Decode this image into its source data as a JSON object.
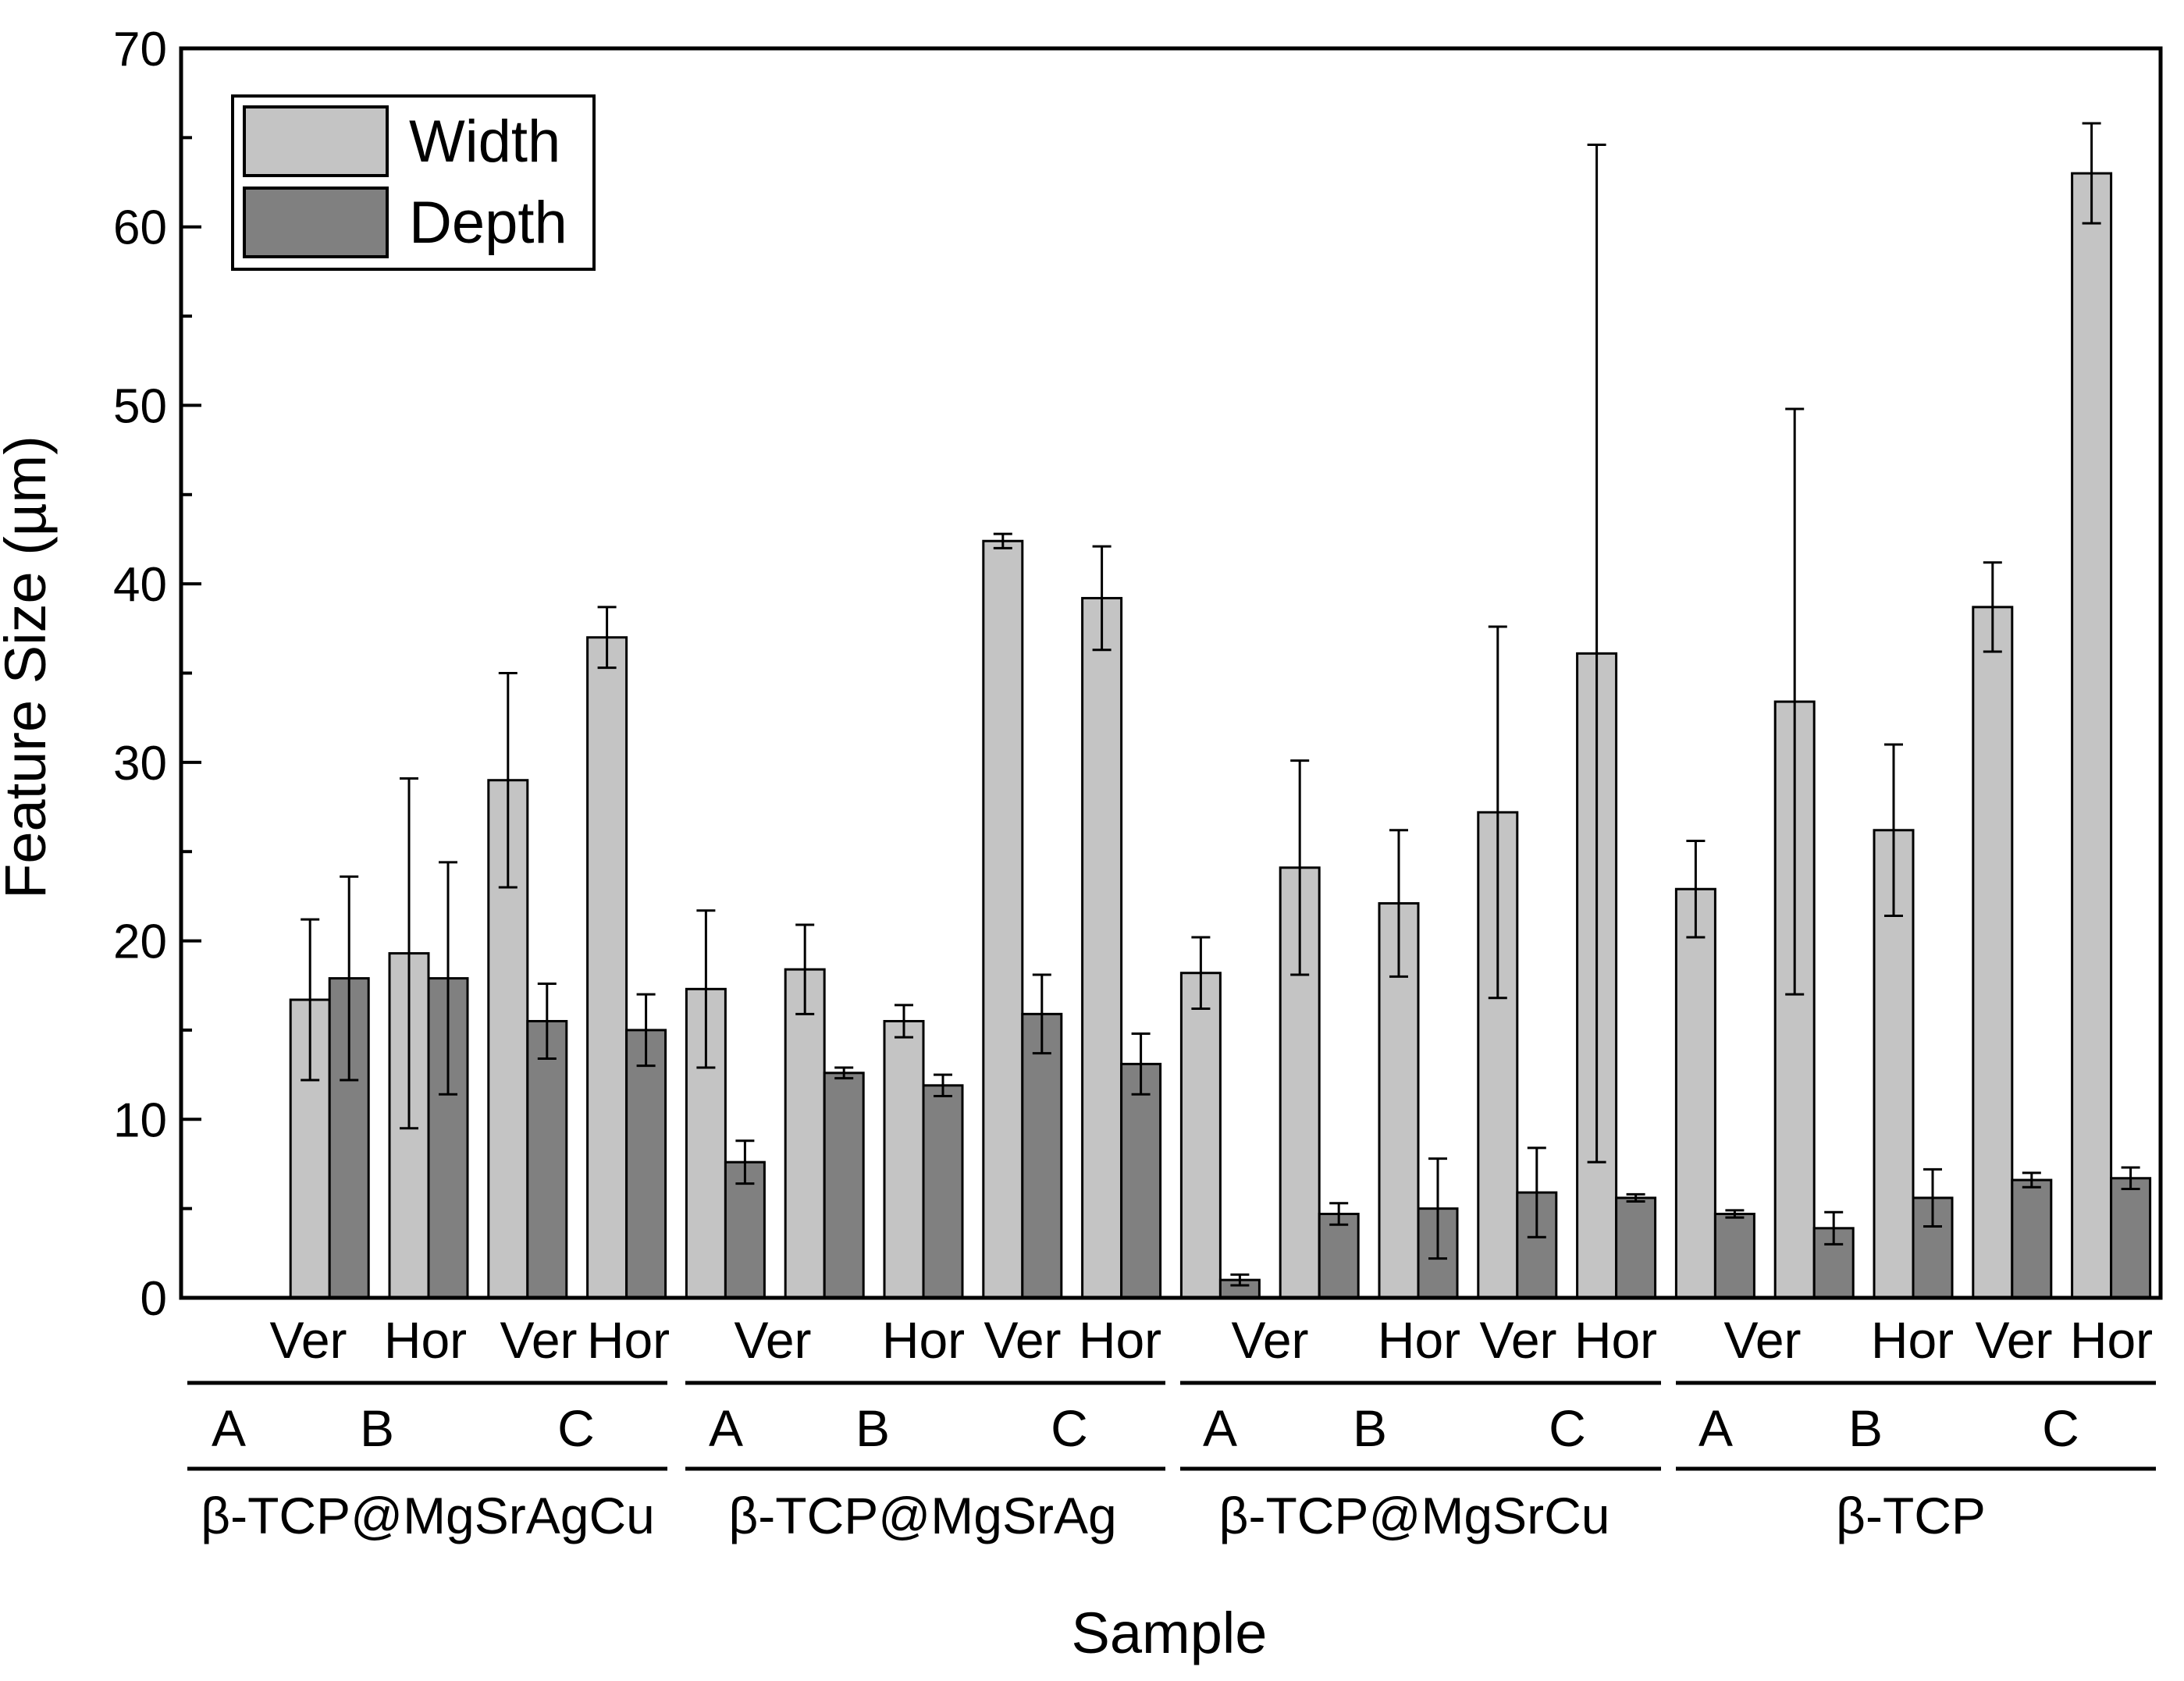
{
  "chart_data": {
    "type": "bar",
    "title": "",
    "xlabel": "Sample",
    "ylabel": "Feature Size (µm)",
    "ylim": [
      0,
      70
    ],
    "yticks": [
      0,
      10,
      20,
      30,
      40,
      50,
      60,
      70
    ],
    "grid": false,
    "legend_position": "top-left",
    "categories": [
      "β-TCP@MgSrAgCu A Ver",
      "β-TCP@MgSrAgCu B Ver",
      "β-TCP@MgSrAgCu B Hor",
      "β-TCP@MgSrAgCu C Ver",
      "β-TCP@MgSrAgCu C Hor",
      "β-TCP@MgSrAg A Ver",
      "β-TCP@MgSrAg B Ver",
      "β-TCP@MgSrAg B Hor",
      "β-TCP@MgSrAg C Ver",
      "β-TCP@MgSrAg C Hor",
      "β-TCP@MgSrCu A Ver",
      "β-TCP@MgSrCu B Ver",
      "β-TCP@MgSrCu B Hor",
      "β-TCP@MgSrCu C Ver",
      "β-TCP@MgSrCu C Hor",
      "β-TCP A Ver",
      "β-TCP B Ver",
      "β-TCP B Hor",
      "β-TCP C Ver",
      "β-TCP C Hor"
    ],
    "series": [
      {
        "name": "Width",
        "color": "#c4c4c4",
        "values": [
          null,
          16.7,
          19.3,
          29.0,
          37.0,
          17.3,
          18.4,
          15.5,
          42.4,
          39.2,
          18.2,
          24.1,
          22.1,
          27.2,
          36.1,
          22.9,
          33.4,
          26.2,
          38.7,
          63.0
        ],
        "errors": [
          null,
          4.5,
          9.8,
          6.0,
          1.7,
          4.4,
          2.5,
          0.9,
          0.4,
          2.9,
          2.0,
          6.0,
          4.1,
          10.4,
          28.5,
          2.7,
          16.4,
          4.8,
          2.5,
          2.8
        ]
      },
      {
        "name": "Depth",
        "color": "#808080",
        "values": [
          null,
          17.9,
          17.9,
          15.5,
          15.0,
          7.6,
          12.6,
          11.9,
          15.9,
          13.1,
          1.0,
          4.7,
          5.0,
          5.9,
          5.6,
          4.7,
          3.9,
          5.6,
          6.6,
          6.7
        ]
      }
    ],
    "depth_errors": [
      null,
      5.7,
      6.5,
      2.1,
      2.0,
      1.2,
      0.3,
      0.6,
      2.2,
      1.7,
      0.3,
      0.6,
      2.8,
      2.5,
      0.2,
      0.2,
      0.9,
      1.6,
      0.4,
      0.6
    ],
    "category_groups": {
      "orientation_labels": [
        [
          "Ver",
          "Hor",
          "Ver",
          "Hor"
        ],
        [
          "Ver",
          "Hor",
          "Ver",
          "Hor"
        ],
        [
          "Ver",
          "Hor",
          "Ver",
          "Hor"
        ],
        [
          "Ver",
          "Hor",
          "Ver",
          "Hor"
        ]
      ],
      "sample_labels": [
        [
          "A",
          "B",
          "C"
        ],
        [
          "A",
          "B",
          "C"
        ],
        [
          "A",
          "B",
          "C"
        ],
        [
          "A",
          "B",
          "C"
        ]
      ],
      "material_labels": [
        "β-TCP@MgSrAgCu",
        "β-TCP@MgSrAg",
        "β-TCP@MgSrCu",
        "β-TCP"
      ]
    }
  }
}
